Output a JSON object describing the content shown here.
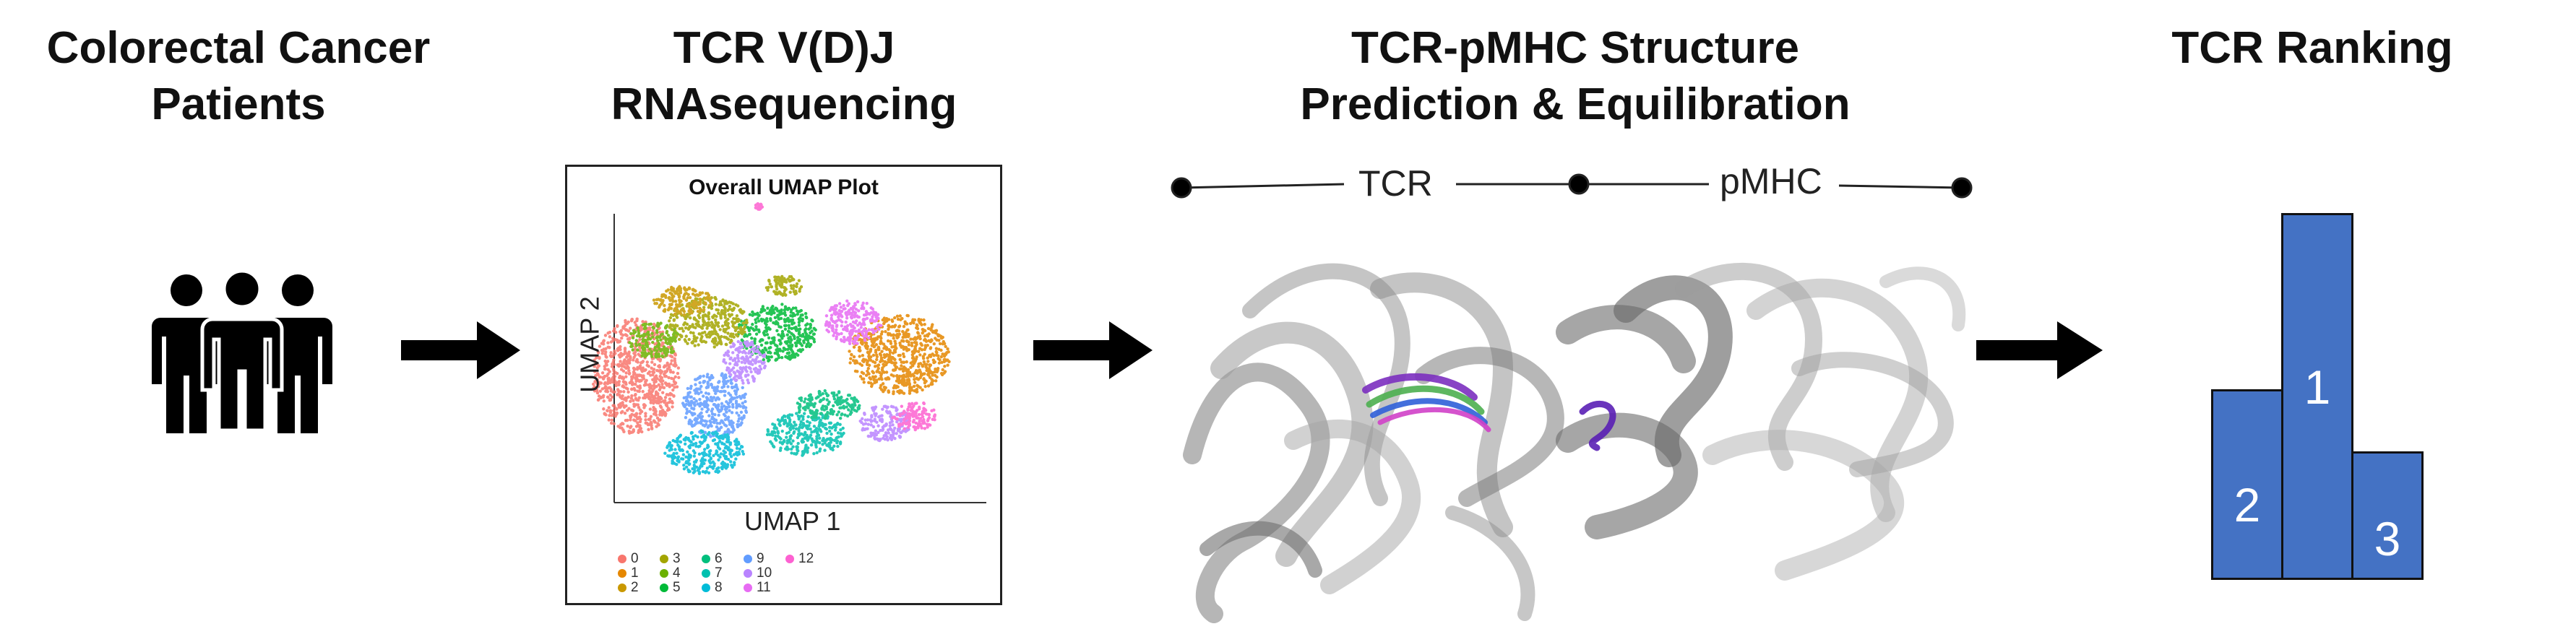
{
  "headings": {
    "patients": [
      "Colorectal Cancer",
      "Patients"
    ],
    "sequencing": [
      "TCR V(D)J",
      "RNAsequencing"
    ],
    "structure": [
      "TCR-pMHC Structure",
      "Prediction & Equilibration"
    ],
    "ranking": [
      "TCR Ranking"
    ]
  },
  "umap": {
    "title": "Overall UMAP Plot",
    "xlabel": "UMAP 1",
    "ylabel": "UMAP 2",
    "legend": [
      {
        "label": "0",
        "color": "#f8766d"
      },
      {
        "label": "1",
        "color": "#e58700"
      },
      {
        "label": "2",
        "color": "#c99800"
      },
      {
        "label": "3",
        "color": "#a3a500"
      },
      {
        "label": "4",
        "color": "#6bb100"
      },
      {
        "label": "5",
        "color": "#00ba38"
      },
      {
        "label": "6",
        "color": "#00bf7d"
      },
      {
        "label": "7",
        "color": "#00c0af"
      },
      {
        "label": "8",
        "color": "#00bcd8"
      },
      {
        "label": "9",
        "color": "#619cff"
      },
      {
        "label": "10",
        "color": "#b983ff"
      },
      {
        "label": "11",
        "color": "#e76bf3"
      },
      {
        "label": "12",
        "color": "#fd61d1"
      }
    ]
  },
  "structure": {
    "left_label": "TCR",
    "right_label": "pMHC"
  },
  "ranking": {
    "bars": [
      {
        "label": "2",
        "height": 0.52
      },
      {
        "label": "1",
        "height": 1.0
      },
      {
        "label": "3",
        "height": 0.35
      }
    ],
    "bar_color": "#4472c4"
  },
  "icons": [
    "people-icon",
    "arrow-right-icon"
  ]
}
